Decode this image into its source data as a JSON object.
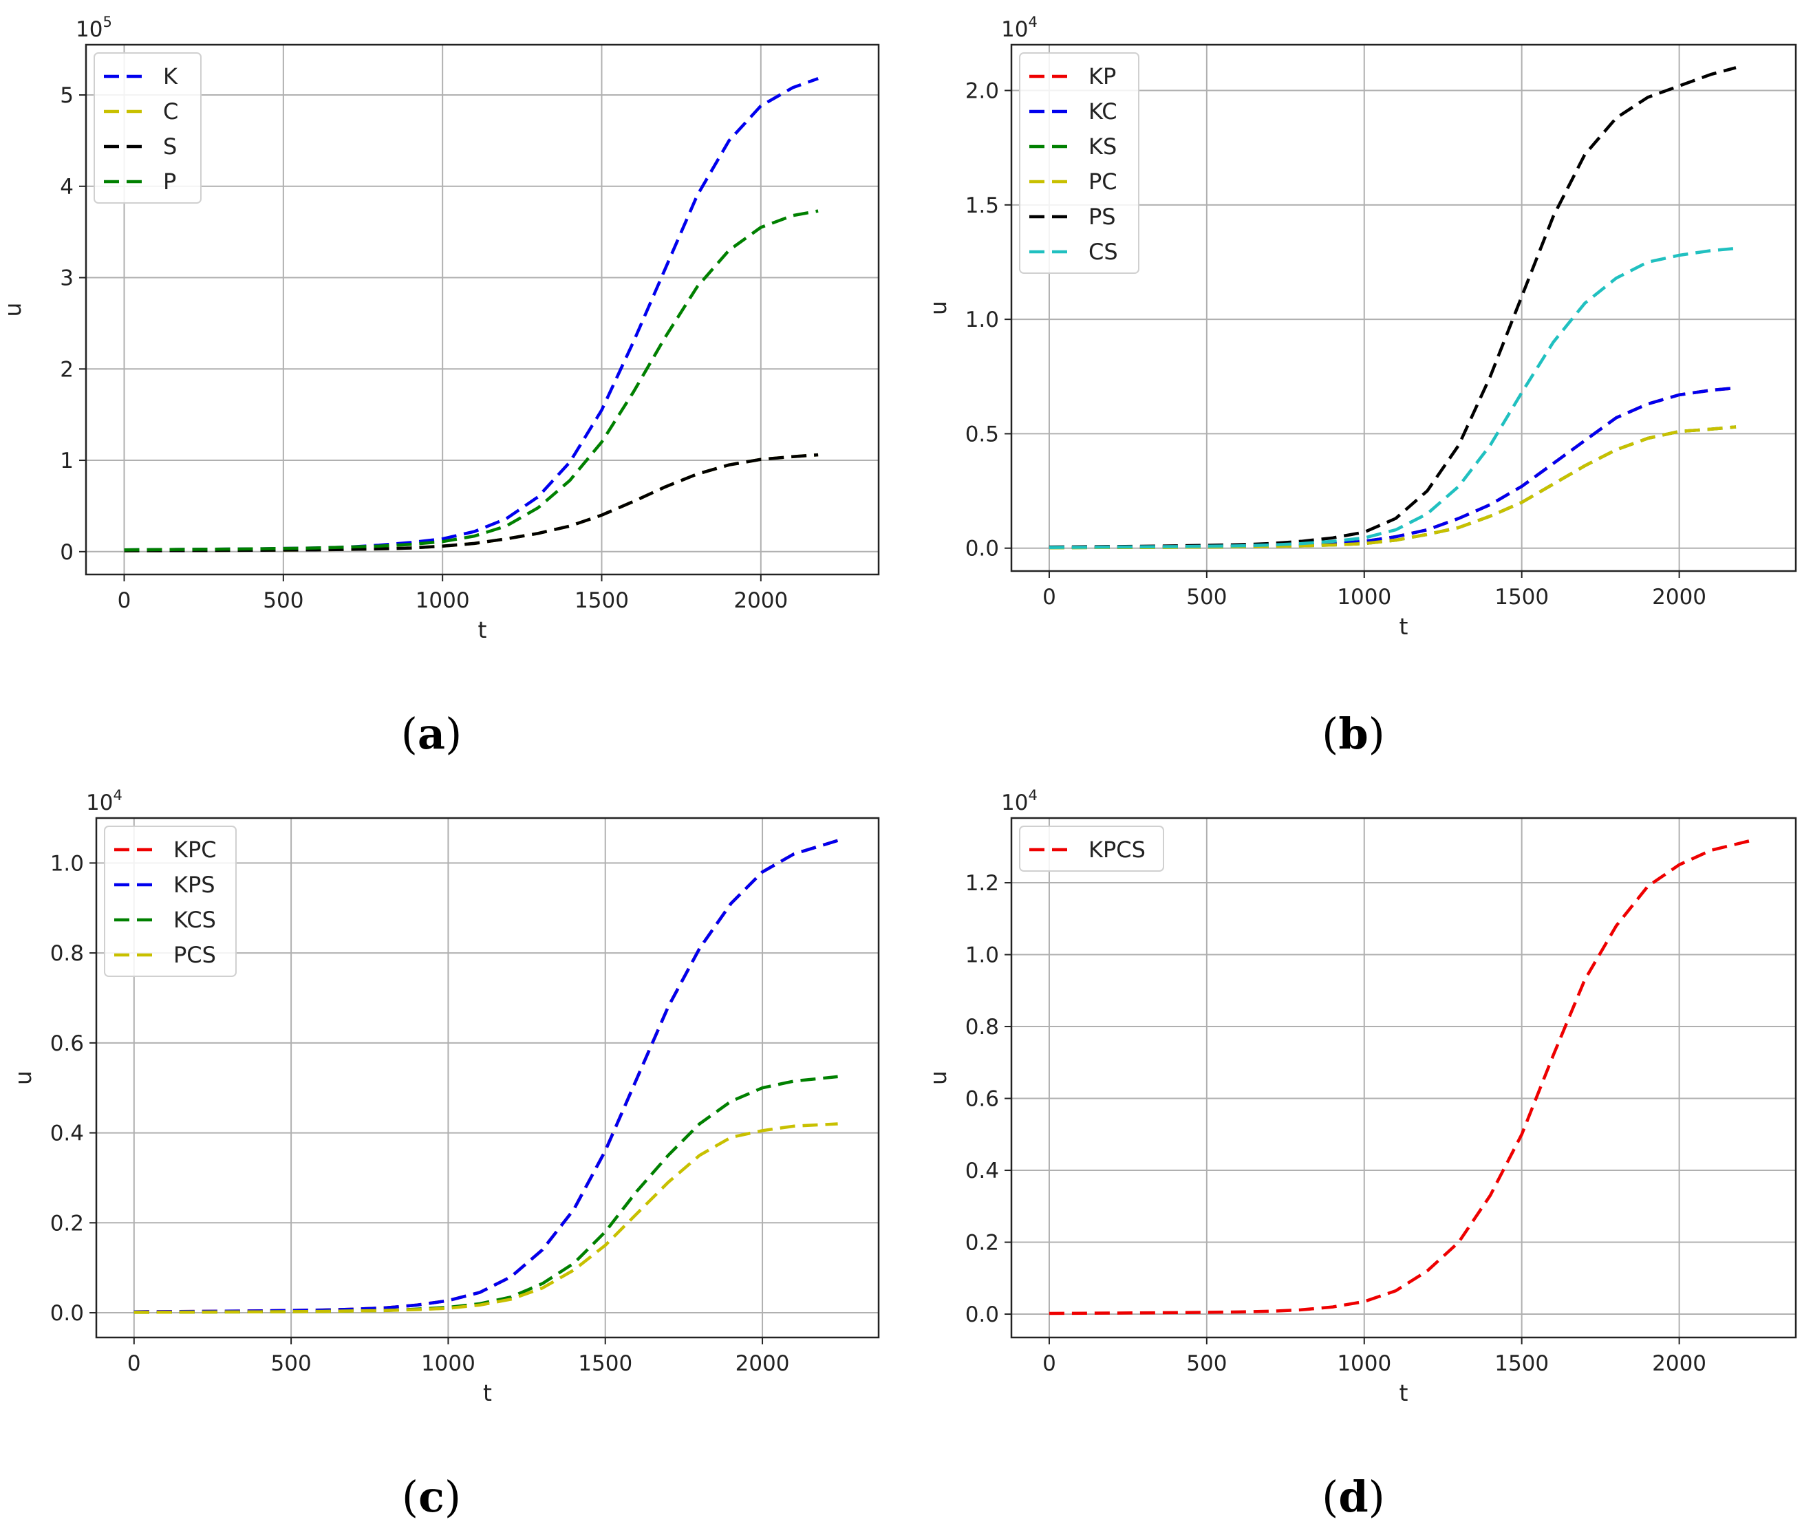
{
  "chart_data": [
    {
      "type": "line",
      "panel": "a",
      "caption_letter": "a",
      "xlabel": "t",
      "ylabel": "u",
      "scale_label": "10",
      "scale_exp": "5",
      "xlim": [
        -120,
        2370
      ],
      "ylim": [
        -0.25,
        5.55
      ],
      "x_ticks": [
        0,
        500,
        1000,
        1500,
        2000
      ],
      "y_ticks": [
        0,
        1,
        2,
        3,
        4,
        5
      ],
      "y_tick_labels": [
        "0",
        "1",
        "2",
        "3",
        "4",
        "5"
      ],
      "grid": true,
      "legend_position": "top-left",
      "x": [
        0,
        200,
        400,
        600,
        700,
        800,
        900,
        1000,
        1100,
        1200,
        1300,
        1400,
        1500,
        1600,
        1700,
        1800,
        1900,
        2000,
        2100,
        2180
      ],
      "series": [
        {
          "name": "K",
          "color": "#0000ee",
          "values": [
            0.02,
            0.025,
            0.03,
            0.04,
            0.05,
            0.07,
            0.1,
            0.14,
            0.22,
            0.36,
            0.6,
            0.98,
            1.55,
            2.3,
            3.1,
            3.9,
            4.5,
            4.88,
            5.08,
            5.18
          ]
        },
        {
          "name": "C",
          "color": "#c8c000",
          "values": [
            0.01,
            0.012,
            0.015,
            0.02,
            0.025,
            0.03,
            0.04,
            0.06,
            0.09,
            0.14,
            0.2,
            0.28,
            0.4,
            0.55,
            0.71,
            0.85,
            0.95,
            1.01,
            1.04,
            1.06
          ]
        },
        {
          "name": "S",
          "color": "#000000",
          "values": [
            0.01,
            0.012,
            0.015,
            0.02,
            0.025,
            0.03,
            0.04,
            0.06,
            0.09,
            0.14,
            0.2,
            0.28,
            0.4,
            0.55,
            0.71,
            0.85,
            0.95,
            1.01,
            1.04,
            1.06
          ]
        },
        {
          "name": "P",
          "color": "#008000",
          "values": [
            0.02,
            0.025,
            0.03,
            0.04,
            0.05,
            0.06,
            0.08,
            0.11,
            0.17,
            0.28,
            0.48,
            0.78,
            1.2,
            1.75,
            2.35,
            2.9,
            3.3,
            3.55,
            3.68,
            3.73
          ]
        }
      ]
    },
    {
      "type": "line",
      "panel": "b",
      "caption_letter": "b",
      "xlabel": "t",
      "ylabel": "u",
      "scale_label": "10",
      "scale_exp": "4",
      "xlim": [
        -120,
        2370
      ],
      "ylim": [
        -0.1,
        2.2
      ],
      "x_ticks": [
        0,
        500,
        1000,
        1500,
        2000
      ],
      "y_ticks": [
        0,
        0.5,
        1.0,
        1.5,
        2.0
      ],
      "y_tick_labels": [
        "0.0",
        "0.5",
        "1.0",
        "1.5",
        "2.0"
      ],
      "grid": true,
      "legend_position": "top-left",
      "x": [
        0,
        200,
        400,
        600,
        700,
        800,
        900,
        1000,
        1100,
        1200,
        1300,
        1400,
        1500,
        1600,
        1700,
        1800,
        1900,
        2000,
        2100,
        2180
      ],
      "series": [
        {
          "name": "KP",
          "color": "#ee0000",
          "values": [
            0.003,
            0.004,
            0.006,
            0.008,
            0.01,
            0.014,
            0.02,
            0.03,
            0.05,
            0.08,
            0.13,
            0.19,
            0.27,
            0.37,
            0.47,
            0.57,
            0.63,
            0.67,
            0.69,
            0.7
          ]
        },
        {
          "name": "KC",
          "color": "#0000ee",
          "values": [
            0.003,
            0.004,
            0.006,
            0.008,
            0.01,
            0.014,
            0.02,
            0.03,
            0.05,
            0.08,
            0.13,
            0.19,
            0.27,
            0.37,
            0.47,
            0.57,
            0.63,
            0.67,
            0.69,
            0.7
          ]
        },
        {
          "name": "KS",
          "color": "#008000",
          "values": [
            0.002,
            0.003,
            0.004,
            0.006,
            0.008,
            0.01,
            0.014,
            0.02,
            0.035,
            0.06,
            0.09,
            0.14,
            0.2,
            0.28,
            0.36,
            0.43,
            0.48,
            0.51,
            0.52,
            0.53
          ]
        },
        {
          "name": "PC",
          "color": "#c8c000",
          "values": [
            0.002,
            0.003,
            0.004,
            0.006,
            0.008,
            0.01,
            0.014,
            0.02,
            0.035,
            0.06,
            0.09,
            0.14,
            0.2,
            0.28,
            0.36,
            0.43,
            0.48,
            0.51,
            0.52,
            0.53
          ]
        },
        {
          "name": "PS",
          "color": "#000000",
          "values": [
            0.005,
            0.007,
            0.01,
            0.015,
            0.02,
            0.03,
            0.045,
            0.07,
            0.13,
            0.25,
            0.45,
            0.75,
            1.1,
            1.45,
            1.72,
            1.88,
            1.97,
            2.02,
            2.07,
            2.1
          ]
        },
        {
          "name": "CS",
          "color": "#20c0c0",
          "values": [
            0.003,
            0.005,
            0.007,
            0.01,
            0.014,
            0.02,
            0.03,
            0.045,
            0.08,
            0.15,
            0.27,
            0.45,
            0.68,
            0.9,
            1.07,
            1.18,
            1.25,
            1.28,
            1.3,
            1.31
          ]
        }
      ]
    },
    {
      "type": "line",
      "panel": "c",
      "caption_letter": "c",
      "xlabel": "t",
      "ylabel": "u",
      "scale_label": "10",
      "scale_exp": "4",
      "xlim": [
        -120,
        2370
      ],
      "ylim": [
        -0.055,
        1.1
      ],
      "x_ticks": [
        0,
        500,
        1000,
        1500,
        2000
      ],
      "y_ticks": [
        0,
        0.2,
        0.4,
        0.6,
        0.8,
        1.0
      ],
      "y_tick_labels": [
        "0.0",
        "0.2",
        "0.4",
        "0.6",
        "0.8",
        "1.0"
      ],
      "grid": true,
      "legend_position": "top-left",
      "x": [
        0,
        200,
        400,
        600,
        700,
        800,
        900,
        1000,
        1100,
        1200,
        1300,
        1400,
        1500,
        1600,
        1700,
        1800,
        1900,
        2000,
        2100,
        2240
      ],
      "series": [
        {
          "name": "KPC",
          "color": "#ee0000",
          "values": [
            0.002,
            0.003,
            0.004,
            0.006,
            0.008,
            0.011,
            0.017,
            0.027,
            0.045,
            0.08,
            0.14,
            0.23,
            0.36,
            0.52,
            0.68,
            0.81,
            0.91,
            0.98,
            1.02,
            1.05
          ]
        },
        {
          "name": "KPS",
          "color": "#0000ee",
          "values": [
            0.002,
            0.003,
            0.004,
            0.006,
            0.008,
            0.011,
            0.017,
            0.027,
            0.045,
            0.08,
            0.14,
            0.23,
            0.36,
            0.52,
            0.68,
            0.81,
            0.91,
            0.98,
            1.02,
            1.05
          ]
        },
        {
          "name": "KCS",
          "color": "#008000",
          "values": [
            0.001,
            0.0015,
            0.002,
            0.003,
            0.004,
            0.005,
            0.008,
            0.012,
            0.02,
            0.035,
            0.065,
            0.11,
            0.18,
            0.27,
            0.35,
            0.42,
            0.47,
            0.5,
            0.515,
            0.525
          ]
        },
        {
          "name": "PCS",
          "color": "#c8c000",
          "values": [
            0.001,
            0.0015,
            0.002,
            0.003,
            0.004,
            0.005,
            0.007,
            0.01,
            0.017,
            0.03,
            0.055,
            0.095,
            0.15,
            0.22,
            0.29,
            0.35,
            0.39,
            0.405,
            0.415,
            0.42
          ]
        }
      ]
    },
    {
      "type": "line",
      "panel": "d",
      "caption_letter": "d",
      "xlabel": "t",
      "ylabel": "u",
      "scale_label": "10",
      "scale_exp": "4",
      "xlim": [
        -120,
        2370
      ],
      "ylim": [
        -0.065,
        1.38
      ],
      "x_ticks": [
        0,
        500,
        1000,
        1500,
        2000
      ],
      "y_ticks": [
        0,
        0.2,
        0.4,
        0.6,
        0.8,
        1.0,
        1.2
      ],
      "y_tick_labels": [
        "0.0",
        "0.2",
        "0.4",
        "0.6",
        "0.8",
        "1.0",
        "1.2"
      ],
      "grid": true,
      "legend_position": "top-left",
      "x": [
        0,
        200,
        400,
        600,
        700,
        800,
        900,
        1000,
        1100,
        1200,
        1300,
        1400,
        1500,
        1600,
        1700,
        1800,
        1900,
        2000,
        2100,
        2240
      ],
      "series": [
        {
          "name": "KPCS",
          "color": "#ee0000",
          "values": [
            0.002,
            0.003,
            0.004,
            0.006,
            0.008,
            0.012,
            0.02,
            0.035,
            0.065,
            0.12,
            0.2,
            0.33,
            0.5,
            0.72,
            0.93,
            1.08,
            1.19,
            1.25,
            1.29,
            1.32
          ]
        }
      ]
    }
  ]
}
